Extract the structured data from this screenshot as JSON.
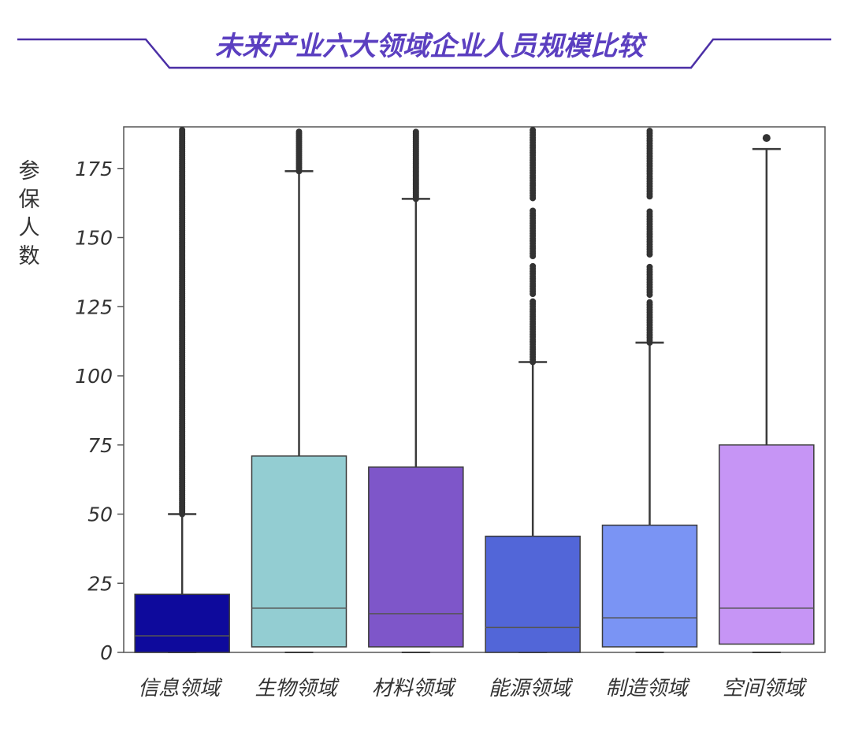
{
  "chart_data": {
    "type": "box",
    "title": "未来产业六大领域企业人员规模比较",
    "ylabel": "参保人数",
    "xlabel": "",
    "ylim": [
      0,
      190
    ],
    "yticks": [
      "0",
      "25",
      "50",
      "75",
      "100",
      "125",
      "150",
      "175"
    ],
    "grid": false,
    "categories": [
      "信息领域",
      "生物领域",
      "材料领域",
      "能源领域",
      "制造领域",
      "空间领域"
    ],
    "boxes": [
      {
        "name": "信息领域",
        "min": 0,
        "q1": 0,
        "median": 6,
        "q3": 21,
        "max": 50,
        "outliers_from": 50,
        "outliers_to": 190,
        "outliers_density": "dense",
        "color": "#0e0a9c"
      },
      {
        "name": "生物领域",
        "min": 0,
        "q1": 2,
        "median": 16,
        "q3": 71,
        "max": 174,
        "outliers_from": 174,
        "outliers_to": 190,
        "outliers_density": "dense",
        "color": "#93cdd2"
      },
      {
        "name": "材料领域",
        "min": 0,
        "q1": 2,
        "median": 14,
        "q3": 67,
        "max": 164,
        "outliers_from": 164,
        "outliers_to": 190,
        "outliers_density": "dense",
        "color": "#7e56c9"
      },
      {
        "name": "能源领域",
        "min": 0,
        "q1": 0,
        "median": 9,
        "q3": 42,
        "max": 105,
        "outliers_from": 105,
        "outliers_to": 190,
        "outliers_density": "medium",
        "color": "#5266d8"
      },
      {
        "name": "制造领域",
        "min": 0,
        "q1": 2,
        "median": 12.5,
        "q3": 46,
        "max": 112,
        "outliers_from": 112,
        "outliers_to": 190,
        "outliers_density": "medium",
        "color": "#7a94f4"
      },
      {
        "name": "空间领域",
        "min": 0,
        "q1": 3,
        "median": 16,
        "q3": 75,
        "max": 182,
        "outliers_from": 186,
        "outliers_to": 187,
        "outliers_density": "single",
        "color": "#c695f5"
      }
    ]
  },
  "colors": {
    "title": "#5b3fc0",
    "banner_line": "#4b2fa6",
    "axis": "#555555",
    "whisker": "#3a3a3a",
    "median": "#555555"
  }
}
